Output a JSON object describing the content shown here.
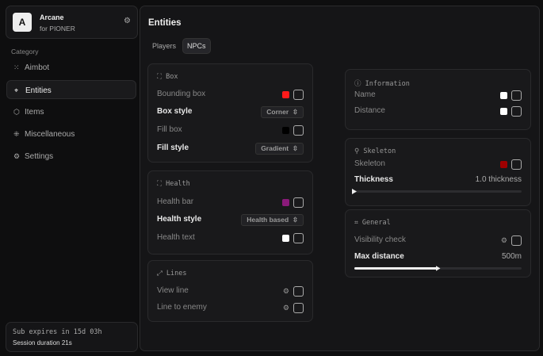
{
  "brand": {
    "logo": "A",
    "name": "Arcane",
    "sub": "for PIONER",
    "icon": "gear-icon"
  },
  "sidebar": {
    "category": "Category",
    "items": [
      {
        "label": "Aimbot",
        "icon": "crosshair-icon",
        "glyph": "⁙"
      },
      {
        "label": "Entities",
        "icon": "target-icon",
        "glyph": "⌖"
      },
      {
        "label": "Items",
        "icon": "cube-icon",
        "glyph": "⬡"
      },
      {
        "label": "Miscellaneous",
        "icon": "grid-icon",
        "glyph": "⁜"
      },
      {
        "label": "Settings",
        "icon": "gear-icon",
        "glyph": "⚙"
      }
    ],
    "active": "Entities",
    "footer": {
      "sub": "Sub expires in 15d 03h",
      "session": "Session duration 21s"
    }
  },
  "main": {
    "title": "Entities",
    "tabs": [
      "Players",
      "NPCs"
    ],
    "active_tab": "NPCs",
    "box": {
      "title": "Box",
      "bounding": "Bounding box",
      "bounding_color": "#ff1a1a",
      "box_style": "Box style",
      "box_style_value": "Corner",
      "fill_box": "Fill box",
      "fill_color": "#000000",
      "fill_style": "Fill style",
      "fill_style_value": "Gradient"
    },
    "health": {
      "title": "Health",
      "bar": "Health bar",
      "bar_color": "#8a1a7a",
      "style": "Health style",
      "style_value": "Health based",
      "text": "Health text",
      "text_color": "#ffffff"
    },
    "lines": {
      "title": "Lines",
      "view": "View line",
      "enemy": "Line to enemy"
    },
    "information": {
      "title": "Information",
      "name": "Name",
      "name_color": "#ffffff",
      "distance": "Distance",
      "distance_color": "#ffffff"
    },
    "skeleton": {
      "title": "Skeleton",
      "skeleton": "Skeleton",
      "color": "#a00000",
      "thickness": "Thickness",
      "thickness_value": "1.0 thickness",
      "thickness_level": 0
    },
    "general": {
      "title": "General",
      "visibility": "Visibility check",
      "max_distance": "Max distance",
      "max_distance_value": "500m",
      "max_distance_level": 0.5
    }
  }
}
